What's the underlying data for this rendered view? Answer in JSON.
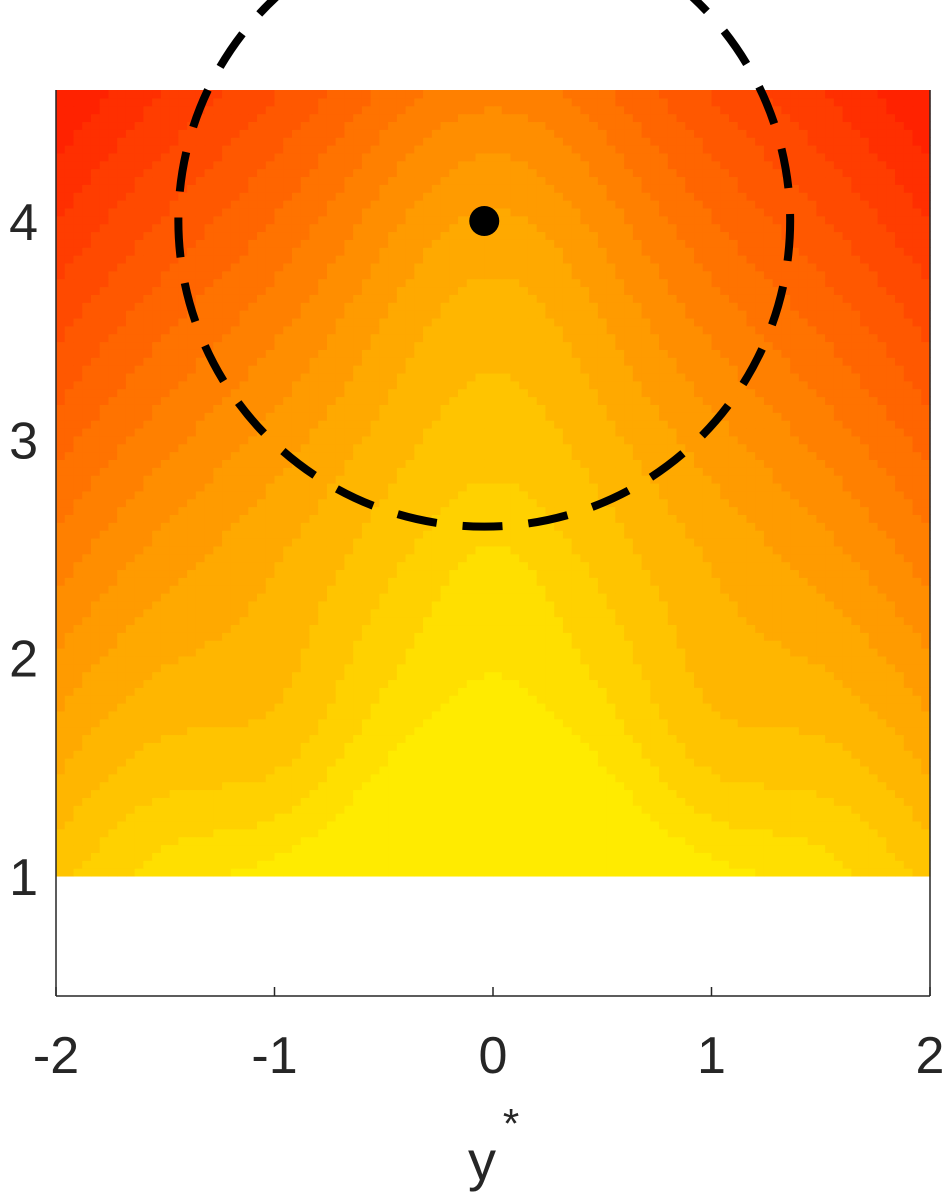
{
  "chart_data": {
    "type": "heatmap",
    "title": "",
    "xlabel": "y",
    "xlabel_superscript": "*",
    "ylabel": "",
    "xlim": [
      -2,
      2
    ],
    "ylim": [
      0.45,
      4.6
    ],
    "field_ylim": [
      1.0,
      4.6
    ],
    "xticks": [
      -2,
      -1,
      0,
      1,
      2
    ],
    "xtick_labels": [
      "-2",
      "-1",
      "0",
      "1",
      "2"
    ],
    "yticks": [
      1,
      2,
      3,
      4
    ],
    "ytick_labels": [
      "1",
      "2",
      "3",
      "4"
    ],
    "grid": false,
    "colormap": "autumn",
    "colormap_low": "#ffff00",
    "colormap_high": "#ff0000",
    "contour_levels": 18,
    "marker": {
      "x": -0.04,
      "y": 4.0,
      "color": "#000000"
    },
    "dashed_circle": {
      "cx": -0.04,
      "cy": 4.0,
      "radius": 1.4,
      "color": "#000000"
    }
  }
}
